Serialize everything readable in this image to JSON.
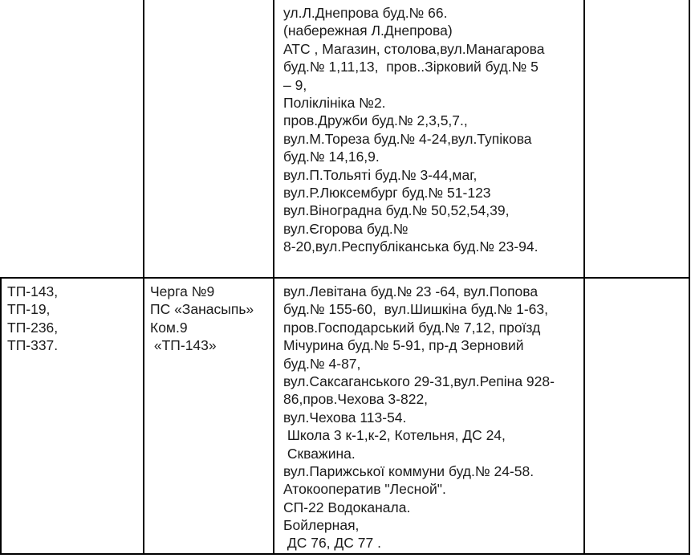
{
  "colors": {
    "page_background": "#ffffff",
    "text": "#1b1b1b",
    "table_border": "#000000"
  },
  "table": {
    "description": "outage-schedule-table",
    "columns": [
      "substations",
      "queue",
      "addresses",
      "notes"
    ],
    "rows": [
      {
        "substations": [],
        "queue": [],
        "addresses": [
          "ул.Л.Днепрова буд.№ 66.",
          "(набережная Л.Днепрова)",
          "АТС , Магазин, столова,вул.Манагарова",
          "буд.№ 1,11,13,  пров..Зірковий буд.№ 5",
          "– 9,",
          "Поліклініка №2.",
          "пров.Дружби буд.№ 2,3,5,7.,",
          "вул.М.Тореза буд.№ 4-24,вул.Тупікова",
          "буд.№ 14,16,9.",
          "вул.П.Тольяті буд.№ 3-44,маг,",
          "вул.Р.Люксембург буд.№ 51-123",
          "вул.Віноградна буд.№ 50,52,54,39,",
          "вул.Єгорова буд.№",
          "8-20,вул.Республіканська буд.№ 23-94."
        ],
        "notes": []
      },
      {
        "substations": [
          "ТП-143,",
          "ТП-19,",
          "ТП-236,",
          "ТП-337."
        ],
        "queue": [
          "Черга №9",
          "ПС «Занасыпь»",
          "Ком.9",
          " «ТП-143»"
        ],
        "addresses": [
          "вул.Левітана буд.№ 23 -64, вул.Попова",
          "буд.№ 155-60,  вул.Шишкіна буд.№ 1-63,",
          "пров.Господарський буд.№ 7,12, проїзд",
          "Мічурина буд.№ 5-91, пр-д Зерновий",
          "буд.№ 4-87,",
          "вул.Саксаганського 29-31,вул.Репіна 928-",
          "86,пров.Чехова 3-822,",
          "вул.Чехова 113-54.",
          " Школа 3 к-1,к-2, Котельня, ДС 24,",
          " Скважина.",
          "вул.Парижської коммуни буд.№ 24-58.",
          "Атокооператив \"Лесной\".",
          "СП-22 Водоканала.",
          "Бойлерная,",
          " ДС 76, ДС 77 ."
        ],
        "notes": []
      }
    ]
  }
}
